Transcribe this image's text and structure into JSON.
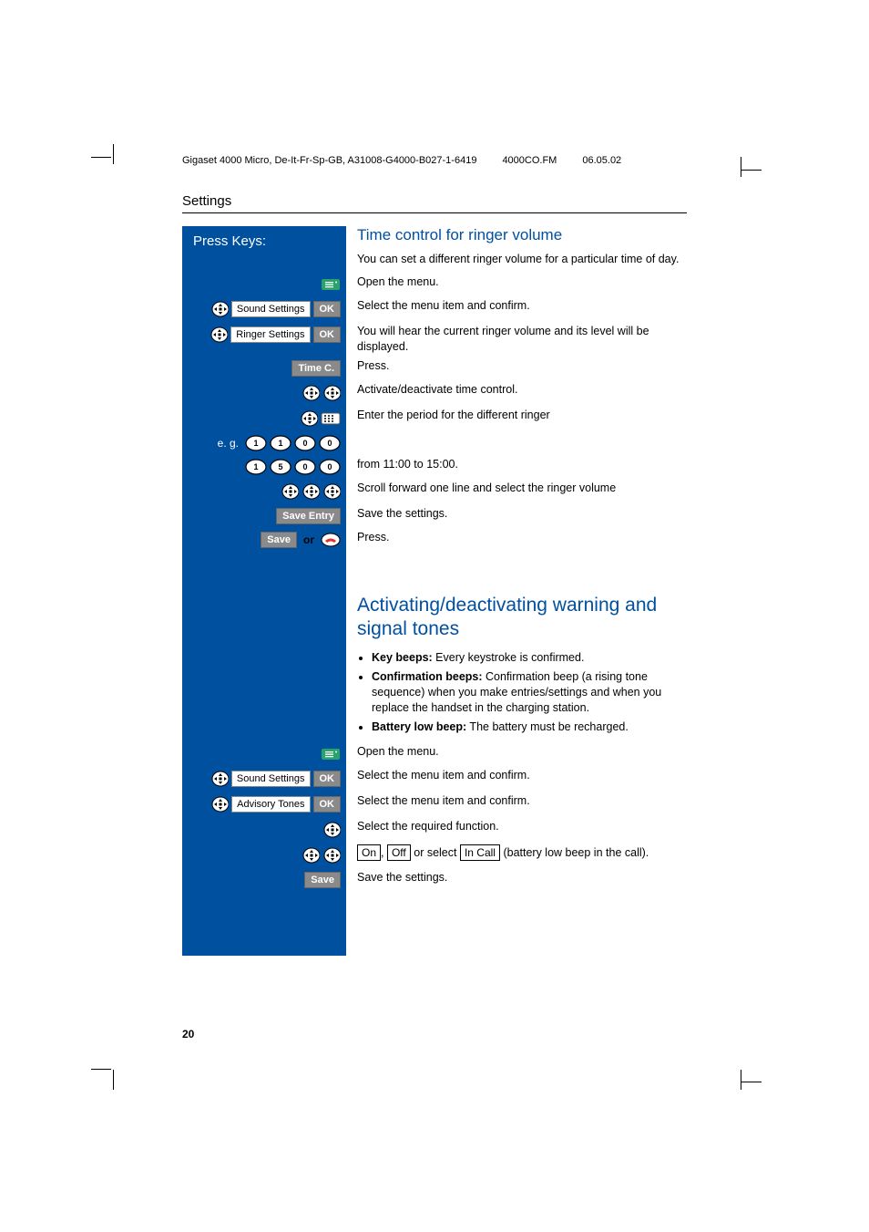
{
  "header": {
    "doc_id": "Gigaset 4000 Micro, De-It-Fr-Sp-GB, A31008-G4000-B027-1-6419",
    "file": "4000CO.FM",
    "date": "06.05.02"
  },
  "section_title": "Settings",
  "left_heading": "Press Keys:",
  "sec1": {
    "title": "Time control for ringer volume",
    "intro": "You can set a different ringer volume for a particular time of day.",
    "steps": [
      {
        "id": "open-menu",
        "desc": "Open the menu."
      },
      {
        "id": "sound",
        "label": "Sound Settings",
        "ok": "OK",
        "desc": "Select the menu item and confirm."
      },
      {
        "id": "ringer",
        "label": "Ringer Settings",
        "ok": "OK",
        "desc": "You will hear the current ringer volume and its level will be displayed."
      },
      {
        "id": "timec",
        "label": "Time C.",
        "desc": "Press."
      },
      {
        "id": "activate",
        "desc": "Activate/deactivate time control."
      },
      {
        "id": "enter",
        "desc": "Enter the period for the different ringer"
      },
      {
        "id": "eg",
        "prefix": "e. g.",
        "keys": [
          "1",
          "1",
          "0",
          "0"
        ],
        "desc": ""
      },
      {
        "id": "keys2",
        "keys": [
          "1",
          "5",
          "0",
          "0"
        ],
        "desc": "from 11:00 to 15:00."
      },
      {
        "id": "scroll",
        "desc": "Scroll forward one line and select the ringer volume"
      },
      {
        "id": "saveentry",
        "label": "Save Entry",
        "desc": "Save the settings."
      },
      {
        "id": "save-or",
        "label": "Save",
        "or": "or",
        "desc": "Press."
      }
    ]
  },
  "sec2": {
    "title": "Activating/deactivating warning and signal tones",
    "bullets": [
      {
        "b": "Key beeps:",
        "t": " Every keystroke is confirmed."
      },
      {
        "b": "Confirmation beeps:",
        "t": " Confirmation beep (a rising tone sequence) when you make entries/settings and when you replace the handset in the charging station."
      },
      {
        "b": "Battery low beep:",
        "t": " The battery must be recharged."
      }
    ],
    "steps": [
      {
        "id": "open2",
        "desc": "Open the menu."
      },
      {
        "id": "sound2",
        "label": "Sound Settings",
        "ok": "OK",
        "desc": "Select the menu item and confirm."
      },
      {
        "id": "adv",
        "label": "Advisory Tones",
        "ok": "OK",
        "desc": "Select the menu item and confirm."
      },
      {
        "id": "req",
        "desc": "Select the required function."
      },
      {
        "id": "onoff",
        "on": "On",
        "off": "Off",
        "incall": "In Call",
        "mid": " or select ",
        "tail": "(battery low beep in the call).",
        "comma": ", "
      },
      {
        "id": "save2",
        "label": "Save",
        "desc": "Save the settings."
      }
    ]
  },
  "page_number": "20",
  "colors": {
    "blue": "#0050a0",
    "grey": "#8a8a8a"
  }
}
